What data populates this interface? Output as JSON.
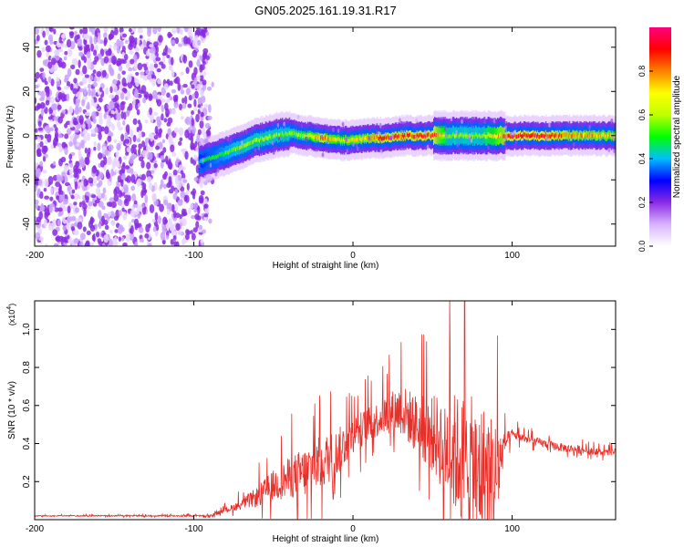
{
  "title": "GN05.2025.161.19.31.R17",
  "chart_data": [
    {
      "type": "heatmap",
      "xlabel": "Height of straight line (km)",
      "ylabel": "Frequency (Hz)",
      "xlim": [
        -200,
        165
      ],
      "ylim": [
        -50,
        49
      ],
      "xticks": [
        "-200",
        "-100",
        "0",
        "100"
      ],
      "yticks": [
        "40",
        "20",
        "0",
        "-20",
        "-40"
      ],
      "colorbar": {
        "label": "Normalized spectral amplitude",
        "range": [
          0,
          1
        ],
        "ticks": [
          "0.0",
          "0.2",
          "0.4",
          "0.6",
          "0.8"
        ],
        "colors": [
          "#ffffff",
          "#d9b3ff",
          "#8a2be2",
          "#0000ff",
          "#00bfff",
          "#00ff00",
          "#c0ff00",
          "#ffff00",
          "#ff8000",
          "#ff0000",
          "#ff0080"
        ]
      },
      "noise_region_x": [
        -200,
        -90
      ],
      "ridge": {
        "x": [
          -97,
          -90,
          -80,
          -70,
          -60,
          -50,
          -40,
          -30,
          -20,
          -10,
          0,
          10,
          20,
          30,
          40,
          50,
          60,
          70,
          80,
          90,
          100,
          110,
          120,
          130,
          140,
          150,
          160,
          165
        ],
        "y": [
          -12,
          -10,
          -8,
          -5,
          -2,
          0,
          1,
          0,
          -1,
          -2,
          -2,
          -1,
          -1,
          0,
          0,
          0,
          0,
          0,
          0,
          0,
          0,
          0,
          0,
          0,
          0,
          0,
          0,
          0
        ],
        "peak_amplitude": [
          0.45,
          0.5,
          0.55,
          0.6,
          0.62,
          0.6,
          0.6,
          0.65,
          0.85,
          0.7,
          0.75,
          0.8,
          0.9,
          0.9,
          0.9,
          0.9,
          0.6,
          0.6,
          0.6,
          0.75,
          0.95,
          0.95,
          0.95,
          0.85,
          0.8,
          0.8,
          0.75,
          0.75
        ]
      }
    },
    {
      "type": "line",
      "xlabel": "Height of straight line (km)",
      "ylabel": "SNR (10 * v/v)",
      "y_multiplier": "(x10",
      "y_multiplier_exp": "4",
      "xlim": [
        -200,
        165
      ],
      "ylim": [
        0,
        1.15
      ],
      "xticks": [
        "-200",
        "-100",
        "0",
        "100"
      ],
      "yticks": [
        "1.0",
        "0.8",
        "0.6",
        "0.4",
        "0.2"
      ],
      "color": "#e8302a",
      "envelope": {
        "x": [
          -200,
          -90,
          -80,
          -70,
          -60,
          -50,
          -40,
          -30,
          -20,
          -10,
          0,
          10,
          20,
          30,
          40,
          50,
          60,
          70,
          80,
          90,
          95,
          100,
          110,
          120,
          130,
          140,
          150,
          160,
          165
        ],
        "baseline": [
          0.02,
          0.02,
          0.05,
          0.08,
          0.12,
          0.18,
          0.22,
          0.25,
          0.3,
          0.35,
          0.45,
          0.5,
          0.55,
          0.58,
          0.5,
          0.45,
          0.38,
          0.3,
          0.25,
          0.22,
          0.4,
          0.45,
          0.42,
          0.4,
          0.38,
          0.37,
          0.36,
          0.35,
          0.36
        ],
        "spread": [
          0.005,
          0.01,
          0.03,
          0.06,
          0.12,
          0.18,
          0.24,
          0.3,
          0.32,
          0.28,
          0.22,
          0.2,
          0.22,
          0.3,
          0.35,
          0.45,
          0.65,
          0.8,
          0.85,
          0.7,
          0.12,
          0.06,
          0.05,
          0.05,
          0.05,
          0.05,
          0.04,
          0.04,
          0.04
        ]
      }
    }
  ]
}
